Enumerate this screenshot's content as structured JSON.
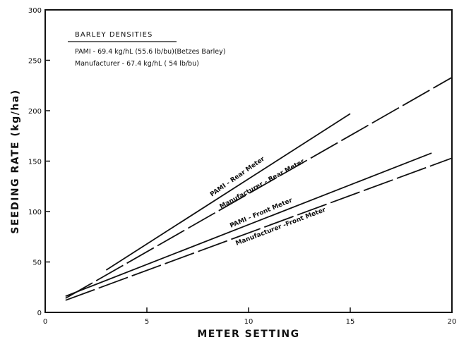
{
  "chart_data": {
    "type": "line",
    "xlabel": "METER SETTING",
    "ylabel": "SEEDING RATE (kg/ha)",
    "xlim": [
      0,
      20
    ],
    "ylim": [
      0,
      300
    ],
    "xticks": [
      0,
      5,
      10,
      15,
      20
    ],
    "yticks": [
      0,
      50,
      100,
      150,
      200,
      250,
      300
    ],
    "grid": false,
    "legend_block": {
      "title": "BARLEY DENSITIES",
      "lines": [
        "PAMI - 69.4 kg/hL (55.6 lb/bu)(Betzes Barley)",
        "Manufacturer - 67.4 kg/hL ( 54 lb/bu)"
      ],
      "placement": "top-left"
    },
    "series": [
      {
        "name": "PAMI - Rear Meter",
        "style": "solid",
        "x": [
          3,
          15
        ],
        "y": [
          42,
          197
        ]
      },
      {
        "name": "Manufacturer - Rear Meter",
        "style": "dashed",
        "x": [
          1,
          20
        ],
        "y": [
          14,
          233
        ]
      },
      {
        "name": "PAMI - Front Meter",
        "style": "solid",
        "x": [
          1,
          19
        ],
        "y": [
          16,
          158
        ]
      },
      {
        "name": "Manufacturer -Front Meter",
        "style": "dashed",
        "x": [
          1,
          20
        ],
        "y": [
          12,
          153
        ]
      }
    ]
  }
}
